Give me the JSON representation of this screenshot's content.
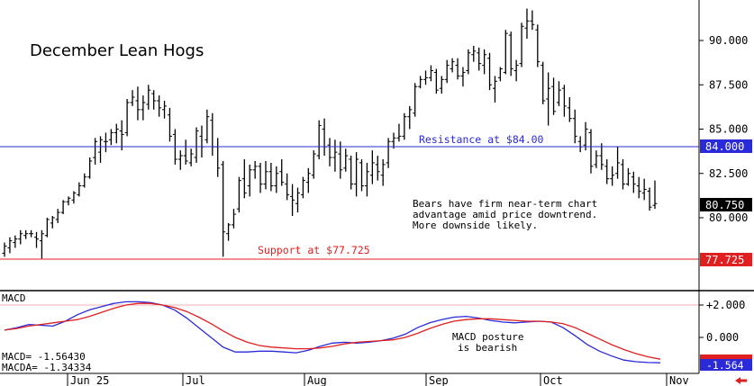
{
  "chart_data": [
    {
      "type": "ohlc",
      "title": "December Lean Hogs",
      "ylim": [
        77.0,
        92.0
      ],
      "y_ticks": [
        {
          "value": 90.0,
          "label": "90.000"
        },
        {
          "value": 87.5,
          "label": "87.500"
        },
        {
          "value": 85.0,
          "label": "85.000"
        },
        {
          "value": 82.5,
          "label": "82.500"
        },
        {
          "value": 80.0,
          "label": "80.000"
        }
      ],
      "x_ticks": [
        "Jun 25",
        "Jul",
        "Aug",
        "Sep",
        "Oct",
        "Nov"
      ],
      "last_price_label": "80.750",
      "last_price": 80.75,
      "lines": [
        {
          "name": "resistance",
          "value": 84.0,
          "text": "Resistance at $84.00",
          "axis_label": "84.000",
          "color": "#2a2ad8"
        },
        {
          "name": "support",
          "value": 77.725,
          "text": "Support at $77.725",
          "axis_label": "77.725",
          "color": "#e02020"
        }
      ],
      "annotation": [
        "Bears have firm near-term chart",
        "advantage amid price downtrend.",
        "More downside likely."
      ],
      "bars": [
        [
          78.0,
          78.6,
          77.8,
          78.4
        ],
        [
          78.3,
          78.9,
          78.0,
          78.7
        ],
        [
          78.6,
          79.0,
          78.3,
          78.8
        ],
        [
          78.8,
          79.3,
          78.5,
          79.1
        ],
        [
          79.0,
          79.3,
          78.8,
          79.1
        ],
        [
          79.1,
          79.3,
          78.9,
          79.1
        ],
        [
          78.9,
          79.2,
          78.3,
          78.8
        ],
        [
          78.7,
          79.3,
          77.7,
          79.1
        ],
        [
          79.0,
          80.0,
          78.9,
          79.9
        ],
        [
          79.7,
          80.1,
          79.4,
          80.0
        ],
        [
          79.9,
          80.5,
          79.7,
          80.3
        ],
        [
          80.3,
          81.0,
          80.2,
          80.9
        ],
        [
          80.9,
          81.2,
          80.7,
          81.1
        ],
        [
          81.0,
          81.5,
          80.8,
          81.4
        ],
        [
          81.3,
          82.0,
          81.2,
          81.8
        ],
        [
          81.8,
          82.5,
          81.7,
          82.3
        ],
        [
          82.3,
          83.4,
          82.2,
          83.2
        ],
        [
          83.4,
          84.5,
          83.0,
          84.3
        ],
        [
          83.7,
          84.6,
          83.1,
          84.4
        ],
        [
          84.3,
          84.8,
          83.7,
          84.3
        ],
        [
          84.4,
          85.0,
          84.1,
          84.8
        ],
        [
          84.8,
          85.3,
          84.2,
          85.0
        ],
        [
          84.9,
          85.5,
          83.8,
          84.7
        ],
        [
          84.8,
          86.7,
          84.6,
          86.5
        ],
        [
          86.5,
          87.2,
          86.3,
          86.8
        ],
        [
          86.6,
          87.4,
          85.5,
          86.1
        ],
        [
          86.1,
          86.9,
          85.5,
          86.5
        ],
        [
          86.4,
          87.5,
          86.1,
          87.2
        ],
        [
          87.0,
          87.2,
          86.1,
          86.6
        ],
        [
          86.6,
          86.9,
          85.7,
          86.2
        ],
        [
          86.1,
          86.6,
          85.6,
          86.3
        ],
        [
          85.8,
          86.2,
          84.3,
          84.6
        ],
        [
          84.7,
          85.0,
          83.0,
          83.3
        ],
        [
          83.3,
          83.8,
          82.7,
          83.5
        ],
        [
          83.5,
          84.4,
          83.0,
          83.2
        ],
        [
          83.1,
          83.9,
          82.9,
          83.6
        ],
        [
          83.4,
          85.1,
          83.1,
          84.9
        ],
        [
          84.6,
          85.2,
          83.4,
          84.0
        ],
        [
          84.4,
          86.1,
          84.2,
          85.7
        ],
        [
          85.5,
          85.9,
          83.5,
          84.0
        ],
        [
          84.0,
          84.5,
          82.3,
          82.8
        ],
        [
          83.0,
          83.2,
          77.8,
          79.2
        ],
        [
          79.1,
          79.7,
          78.7,
          79.6
        ],
        [
          79.6,
          80.5,
          79.4,
          80.2
        ],
        [
          80.5,
          82.3,
          80.3,
          82.1
        ],
        [
          82.2,
          83.3,
          81.1,
          81.4
        ],
        [
          81.8,
          83.0,
          81.2,
          82.7
        ],
        [
          82.7,
          83.2,
          82.2,
          82.9
        ],
        [
          82.9,
          83.1,
          81.4,
          81.9
        ],
        [
          81.9,
          83.2,
          81.6,
          82.6
        ],
        [
          82.6,
          83.1,
          81.5,
          81.8
        ],
        [
          81.8,
          82.9,
          81.4,
          82.5
        ],
        [
          82.6,
          83.3,
          81.8,
          82.0
        ],
        [
          81.9,
          82.5,
          81.0,
          81.3
        ],
        [
          81.2,
          81.9,
          80.1,
          81.0
        ],
        [
          80.8,
          81.7,
          80.3,
          81.4
        ],
        [
          81.3,
          82.3,
          81.1,
          82.1
        ],
        [
          82.0,
          82.8,
          81.4,
          82.5
        ],
        [
          82.4,
          83.8,
          82.2,
          83.6
        ],
        [
          83.5,
          85.5,
          83.3,
          85.2
        ],
        [
          85.0,
          85.6,
          83.5,
          84.0
        ],
        [
          84.1,
          84.5,
          82.9,
          83.4
        ],
        [
          83.4,
          84.4,
          82.6,
          83.7
        ],
        [
          83.6,
          84.3,
          82.2,
          82.7
        ],
        [
          82.8,
          83.9,
          82.6,
          83.5
        ],
        [
          83.3,
          83.5,
          81.6,
          81.9
        ],
        [
          81.9,
          83.7,
          81.2,
          83.3
        ],
        [
          83.1,
          83.3,
          81.5,
          81.8
        ],
        [
          81.8,
          83.1,
          81.2,
          82.6
        ],
        [
          82.4,
          83.8,
          81.9,
          83.1
        ],
        [
          83.0,
          83.5,
          82.1,
          82.6
        ],
        [
          82.4,
          83.3,
          81.8,
          83.0
        ],
        [
          83.1,
          84.5,
          82.8,
          84.3
        ],
        [
          84.3,
          84.8,
          83.9,
          84.5
        ],
        [
          84.5,
          85.3,
          84.3,
          84.6
        ],
        [
          84.6,
          85.9,
          84.4,
          85.7
        ],
        [
          85.7,
          86.3,
          85.0,
          86.1
        ],
        [
          85.9,
          87.6,
          85.7,
          87.4
        ],
        [
          87.4,
          88.0,
          87.3,
          87.8
        ],
        [
          87.8,
          88.3,
          87.5,
          87.9
        ],
        [
          87.9,
          88.6,
          87.7,
          88.3
        ],
        [
          88.2,
          88.4,
          87.0,
          87.2
        ],
        [
          87.3,
          88.0,
          87.0,
          87.8
        ],
        [
          87.8,
          88.9,
          87.6,
          88.6
        ],
        [
          88.4,
          89.0,
          88.2,
          88.8
        ],
        [
          88.6,
          89.0,
          87.8,
          88.0
        ],
        [
          88.0,
          88.5,
          87.4,
          88.2
        ],
        [
          88.3,
          89.5,
          88.1,
          89.3
        ],
        [
          89.2,
          89.7,
          88.8,
          89.4
        ],
        [
          89.3,
          89.6,
          88.3,
          88.7
        ],
        [
          88.6,
          89.5,
          88.1,
          89.2
        ],
        [
          89.0,
          89.3,
          87.2,
          87.5
        ],
        [
          87.3,
          88.0,
          86.5,
          87.7
        ],
        [
          87.9,
          88.5,
          87.7,
          88.4
        ],
        [
          88.2,
          90.6,
          88.1,
          90.4
        ],
        [
          90.3,
          90.5,
          88.0,
          88.4
        ],
        [
          88.3,
          88.9,
          87.7,
          88.6
        ],
        [
          88.7,
          91.0,
          88.5,
          90.8
        ],
        [
          90.7,
          91.8,
          90.1,
          91.1
        ],
        [
          91.1,
          91.7,
          90.6,
          90.9
        ],
        [
          90.6,
          90.9,
          88.5,
          88.8
        ],
        [
          88.6,
          88.8,
          86.4,
          86.6
        ],
        [
          86.7,
          88.2,
          85.2,
          87.3
        ],
        [
          87.4,
          87.9,
          85.8,
          86.0
        ],
        [
          86.5,
          87.7,
          86.3,
          87.2
        ],
        [
          87.3,
          87.5,
          85.7,
          86.3
        ],
        [
          86.2,
          86.8,
          85.4,
          85.6
        ],
        [
          85.6,
          86.1,
          84.2,
          84.6
        ],
        [
          84.3,
          84.6,
          83.7,
          84.0
        ],
        [
          84.1,
          85.4,
          83.8,
          85.0
        ],
        [
          84.8,
          85.0,
          82.5,
          82.9
        ],
        [
          83.0,
          83.8,
          82.8,
          83.5
        ],
        [
          83.5,
          84.2,
          82.7,
          83.0
        ],
        [
          82.9,
          83.3,
          81.9,
          82.2
        ],
        [
          82.2,
          82.9,
          81.8,
          82.4
        ],
        [
          82.5,
          84.0,
          82.2,
          83.1
        ],
        [
          83.0,
          83.3,
          81.6,
          81.9
        ],
        [
          81.9,
          82.8,
          81.8,
          82.5
        ],
        [
          82.3,
          82.6,
          81.4,
          81.9
        ],
        [
          81.8,
          82.3,
          81.1,
          81.5
        ],
        [
          81.4,
          82.2,
          81.0,
          81.6
        ],
        [
          81.5,
          81.7,
          80.4,
          80.6
        ],
        [
          80.7,
          82.1,
          80.5,
          80.8
        ]
      ]
    },
    {
      "type": "line",
      "title": "MACD",
      "ylim": [
        -2.3,
        3.0
      ],
      "y_ticks": [
        {
          "value": 2.0,
          "label": "+2.000"
        },
        {
          "value": 0.0,
          "label": "0.000"
        }
      ],
      "series": [
        {
          "name": "MACD",
          "color": "#2a2ad8",
          "values": [
            0.45,
            0.6,
            0.8,
            0.75,
            0.7,
            1.0,
            1.4,
            1.7,
            1.9,
            2.1,
            2.2,
            2.2,
            2.15,
            2.0,
            1.7,
            1.2,
            0.6,
            0.0,
            -0.6,
            -0.9,
            -0.9,
            -0.85,
            -0.85,
            -0.9,
            -0.95,
            -0.8,
            -0.55,
            -0.35,
            -0.3,
            -0.35,
            -0.3,
            -0.2,
            -0.05,
            0.2,
            0.6,
            0.9,
            1.1,
            1.25,
            1.3,
            1.2,
            1.05,
            0.95,
            0.9,
            0.95,
            1.0,
            0.95,
            0.6,
            0.1,
            -0.45,
            -0.85,
            -1.15,
            -1.4,
            -1.5,
            -1.55,
            -1.564
          ]
        },
        {
          "name": "MACDA",
          "color": "#e02020",
          "values": [
            0.45,
            0.55,
            0.7,
            0.8,
            0.9,
            1.0,
            1.1,
            1.3,
            1.55,
            1.8,
            2.0,
            2.1,
            2.1,
            2.0,
            1.85,
            1.6,
            1.25,
            0.85,
            0.4,
            0.0,
            -0.3,
            -0.5,
            -0.6,
            -0.65,
            -0.7,
            -0.7,
            -0.65,
            -0.55,
            -0.4,
            -0.3,
            -0.25,
            -0.2,
            -0.15,
            0.0,
            0.25,
            0.55,
            0.8,
            1.0,
            1.1,
            1.15,
            1.15,
            1.1,
            1.05,
            1.0,
            1.0,
            0.95,
            0.85,
            0.6,
            0.25,
            -0.1,
            -0.45,
            -0.75,
            -1.0,
            -1.2,
            -1.34334
          ]
        }
      ],
      "annotation": [
        "MACD posture",
        "is bearish"
      ],
      "readout_macd": "MACD=   -1.56430",
      "readout_macda": "MACDA= -1.34334",
      "last_label": "-1.564"
    }
  ]
}
